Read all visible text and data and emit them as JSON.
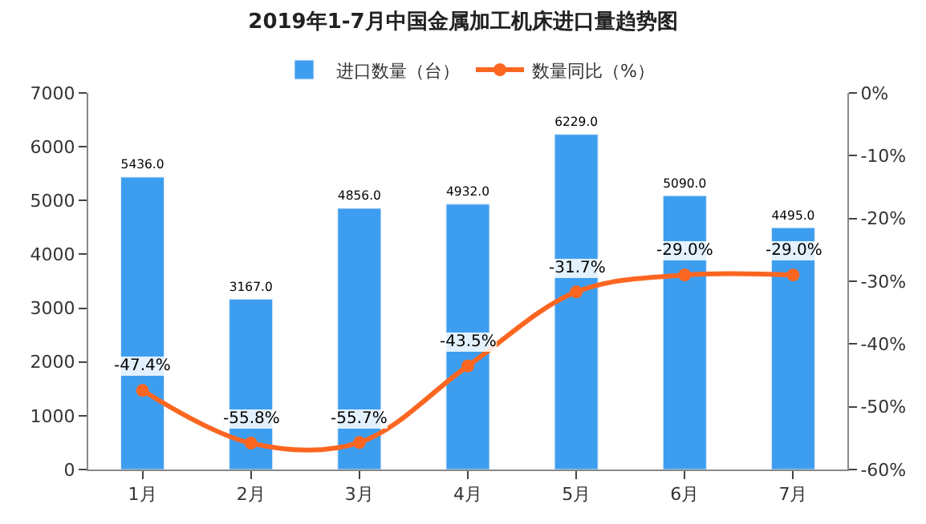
{
  "chart_data": {
    "type": "bar",
    "title": "2019年1-7月中国金属加工机床进口量趋势图",
    "categories": [
      "1月",
      "2月",
      "3月",
      "4月",
      "5月",
      "6月",
      "7月"
    ],
    "series": [
      {
        "name": "进口数量（台）",
        "color": "#3d9ef0",
        "values": [
          5436,
          3167,
          4856,
          4932,
          6229,
          5090,
          4495
        ],
        "value_labels": [
          "5436.0",
          "3167.0",
          "4856.0",
          "4932.0",
          "6229.0",
          "5090.0",
          "4495.0"
        ]
      },
      {
        "name": "数量同比（%）",
        "type": "line",
        "axis": "y2",
        "color": "#fc6621",
        "marker": "circle",
        "values": [
          -47.4,
          -55.8,
          -55.7,
          -43.5,
          -31.7,
          -29.0,
          -29.0
        ],
        "value_labels": [
          "-47.4%",
          "-55.8%",
          "-55.7%",
          "-43.5%",
          "-31.7%",
          "-29.0%",
          "-29.0%"
        ]
      }
    ],
    "ylim": [
      0,
      7000
    ],
    "yticks": [
      0,
      1000,
      2000,
      3000,
      4000,
      5000,
      6000,
      7000
    ],
    "y2lim": [
      -60,
      0
    ],
    "y2ticks": [
      {
        "value": 0,
        "label": "0%"
      },
      {
        "value": -10,
        "label": "-10%"
      },
      {
        "value": -20,
        "label": "-20%"
      },
      {
        "value": -30,
        "label": "-30%"
      },
      {
        "value": -40,
        "label": "-40%"
      },
      {
        "value": -50,
        "label": "-50%"
      },
      {
        "value": -60,
        "label": "-60%"
      }
    ],
    "legend": "top"
  }
}
